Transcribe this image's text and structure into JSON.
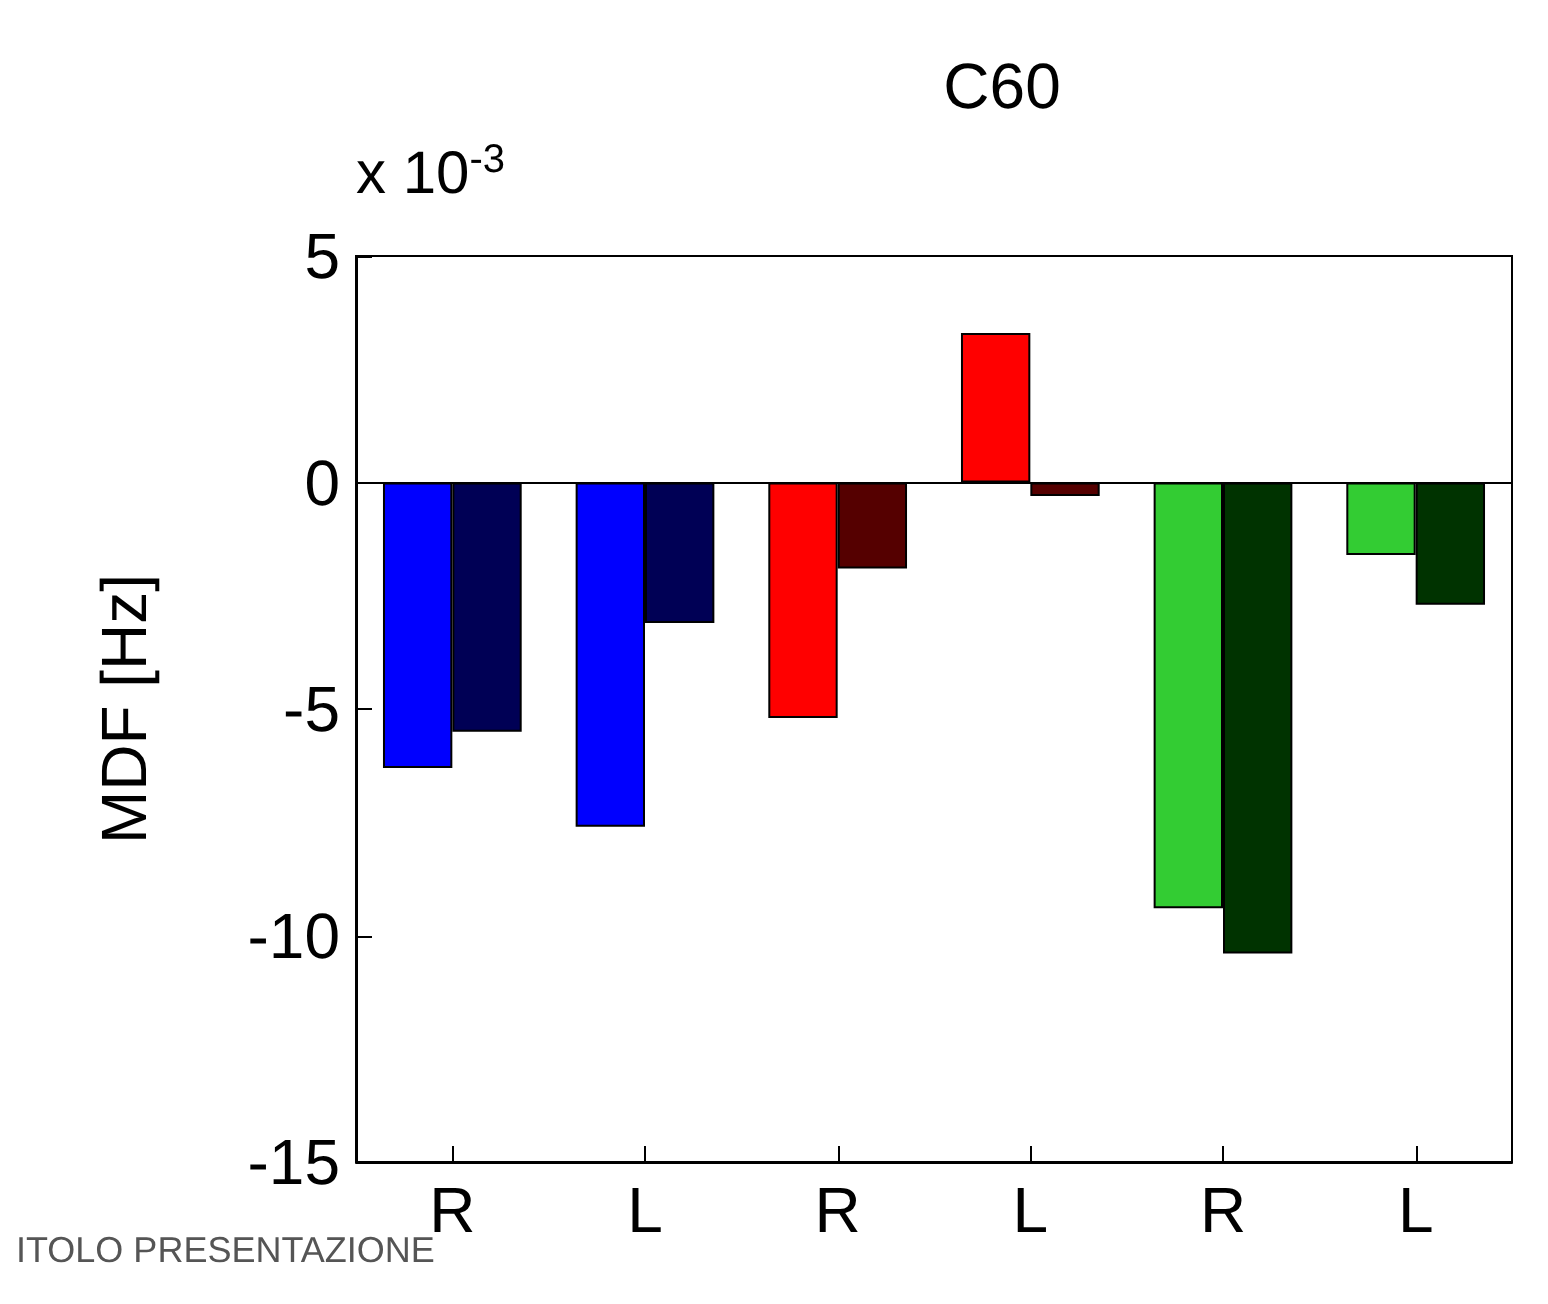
{
  "chart_data": {
    "type": "bar",
    "title": "C60",
    "ylabel": "MDF [Hz]",
    "categories": [
      "R",
      "L",
      "R",
      "L",
      "R",
      "L"
    ],
    "series": [
      {
        "colors": [
          "#0000ff",
          "#0000ff",
          "#ff0000",
          "#ff0000",
          "#33cc33",
          "#33cc33"
        ],
        "values": [
          -6.3,
          -7.6,
          -5.2,
          3.3,
          -9.4,
          -1.6
        ]
      },
      {
        "colors": [
          "#000055",
          "#000055",
          "#550000",
          "#550000",
          "#003300",
          "#003300"
        ],
        "values": [
          -5.5,
          -3.1,
          -1.9,
          -0.3,
          -10.4,
          -2.7
        ]
      }
    ],
    "ylim": [
      -15,
      5
    ],
    "yticks": [
      -15,
      -10,
      -5,
      0,
      5
    ],
    "grid": false,
    "ref_lines": [
      {
        "axis": "y",
        "value": 0
      }
    ],
    "annotations": [
      "x 10$^{-3}$",
      "ITOLO PRESENTAZIONE"
    ]
  }
}
